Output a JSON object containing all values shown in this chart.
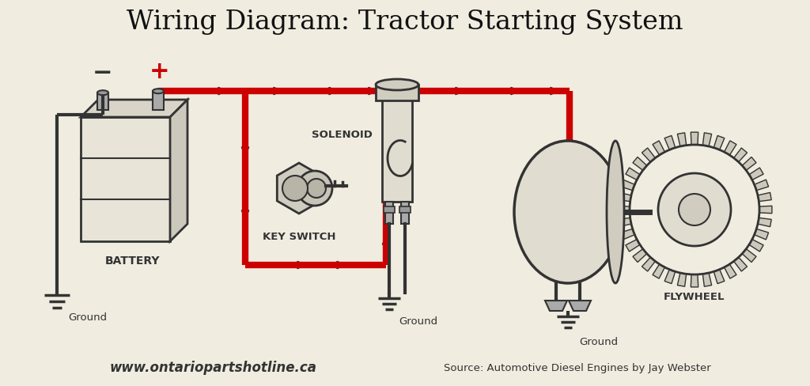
{
  "title": "Wiring Diagram: Tractor Starting System",
  "title_fontsize": 24,
  "bg_color": "#f0ece0",
  "wire_red_color": "#cc0000",
  "wire_dark_color": "#333333",
  "label_color": "#111111",
  "footer_url": "www.ontariopartshotline.ca",
  "footer_source": "Source: Automotive Diesel Engines by Jay Webster",
  "lw_red": 6,
  "lw_dark": 3.0
}
